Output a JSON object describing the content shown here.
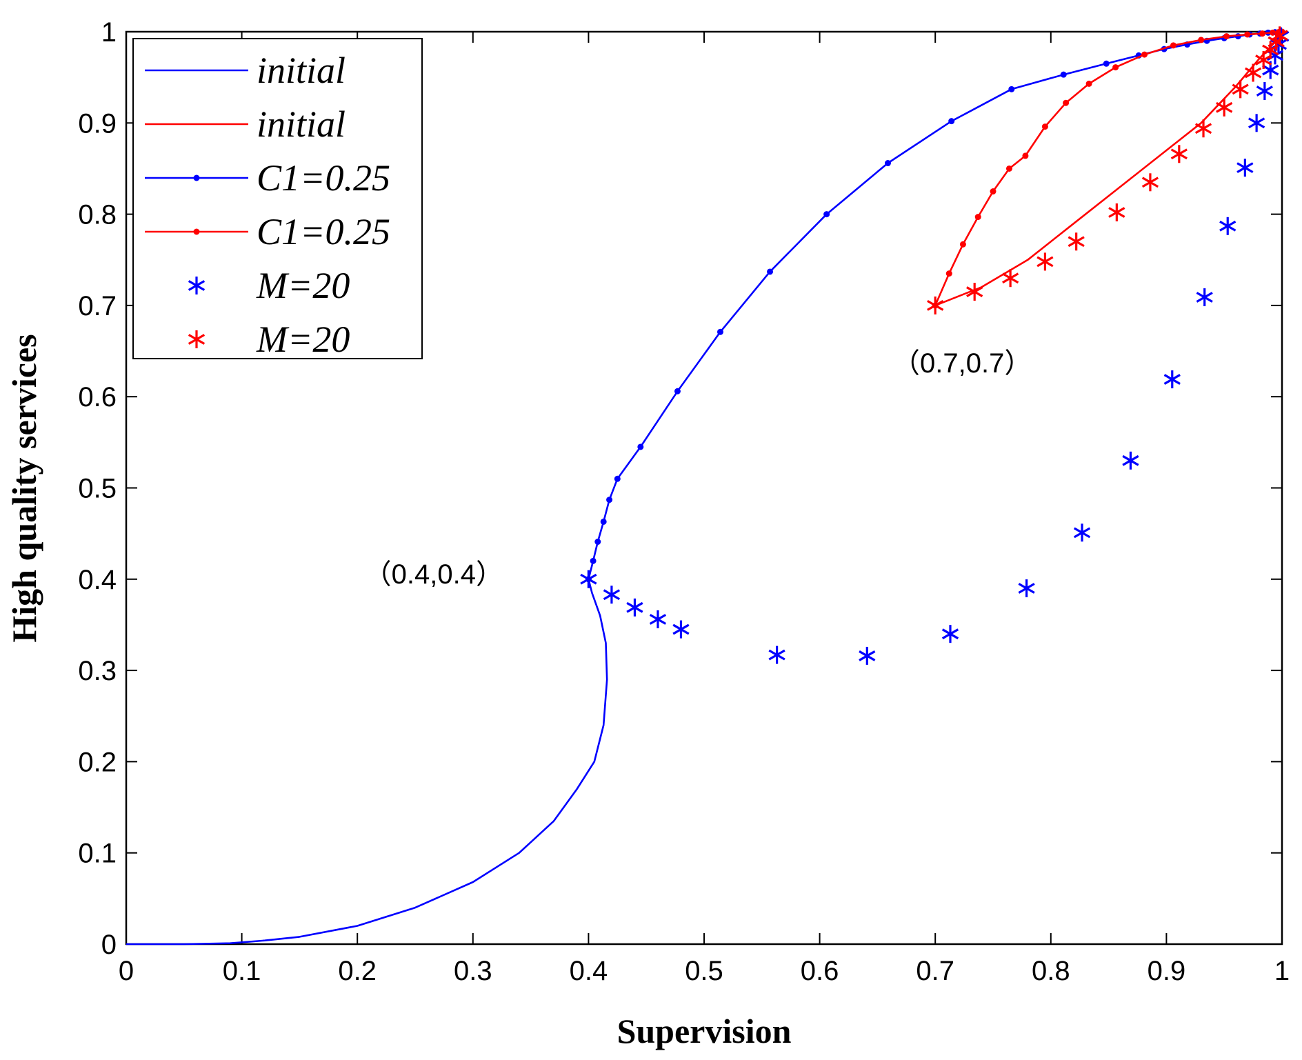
{
  "chart_data": {
    "type": "line",
    "title": "",
    "xlabel": "Supervision",
    "ylabel": "High quality services",
    "xlim": [
      0,
      1
    ],
    "ylim": [
      0,
      1
    ],
    "xticks": [
      "0",
      "0.1",
      "0.2",
      "0.3",
      "0.4",
      "0.5",
      "0.6",
      "0.7",
      "0.8",
      "0.9",
      "1"
    ],
    "yticks": [
      "0",
      "0.1",
      "0.2",
      "0.3",
      "0.4",
      "0.5",
      "0.6",
      "0.7",
      "0.8",
      "0.9",
      "1"
    ],
    "grid": false,
    "legend_position": "top-left",
    "series": [
      {
        "name": "initial",
        "color": "#0000ff",
        "marker": "none",
        "x": [
          0,
          0.05,
          0.09,
          0.12,
          0.15,
          0.2,
          0.25,
          0.3,
          0.34,
          0.37,
          0.39,
          0.405,
          0.413,
          0.416,
          0.415,
          0.41,
          0.403,
          0.4
        ],
        "y": [
          0,
          0,
          0.001,
          0.004,
          0.008,
          0.02,
          0.04,
          0.068,
          0.1,
          0.135,
          0.17,
          0.2,
          0.24,
          0.29,
          0.33,
          0.36,
          0.385,
          0.4
        ]
      },
      {
        "name": "initial",
        "color": "#ff0000",
        "marker": "none",
        "x": [
          0.7,
          0.74,
          0.78,
          0.82,
          0.86,
          0.9,
          0.93,
          0.96,
          0.98,
          0.995,
          1.0
        ],
        "y": [
          0.7,
          0.72,
          0.75,
          0.79,
          0.83,
          0.87,
          0.9,
          0.94,
          0.97,
          0.99,
          1.0
        ]
      },
      {
        "name": "C1=0.25",
        "color": "#0000ff",
        "marker": "dot",
        "x": [
          0.4,
          0.404,
          0.408,
          0.413,
          0.418,
          0.425,
          0.445,
          0.477,
          0.514,
          0.557,
          0.606,
          0.659,
          0.714,
          0.766,
          0.811,
          0.848,
          0.876,
          0.898,
          0.918,
          0.935,
          0.95,
          0.962,
          0.972,
          0.981,
          0.988,
          0.994,
          0.998,
          1.0
        ],
        "y": [
          0.4,
          0.42,
          0.441,
          0.463,
          0.487,
          0.51,
          0.545,
          0.606,
          0.671,
          0.737,
          0.8,
          0.856,
          0.902,
          0.937,
          0.953,
          0.965,
          0.974,
          0.981,
          0.986,
          0.99,
          0.993,
          0.995,
          0.997,
          0.998,
          0.999,
          0.9995,
          0.9998,
          1.0
        ]
      },
      {
        "name": "C1=0.25",
        "color": "#ff0000",
        "marker": "dot",
        "x": [
          0.7,
          0.712,
          0.724,
          0.737,
          0.75,
          0.764,
          0.778,
          0.795,
          0.813,
          0.833,
          0.856,
          0.881,
          0.906,
          0.93,
          0.952,
          0.97,
          0.983,
          0.992,
          0.997,
          1.0
        ],
        "y": [
          0.7,
          0.735,
          0.767,
          0.797,
          0.825,
          0.85,
          0.864,
          0.896,
          0.922,
          0.943,
          0.961,
          0.975,
          0.985,
          0.991,
          0.995,
          0.997,
          0.998,
          0.999,
          0.9995,
          1.0
        ]
      },
      {
        "name": "M=20",
        "color": "#0000ff",
        "marker": "asterisk",
        "x": [
          0.4,
          0.42,
          0.44,
          0.46,
          0.48,
          0.563,
          0.641,
          0.713,
          0.779,
          0.827,
          0.869,
          0.905,
          0.933,
          0.953,
          0.968,
          0.978,
          0.985,
          0.99,
          0.994,
          0.997,
          0.999
        ],
        "y": [
          0.4,
          0.383,
          0.369,
          0.356,
          0.345,
          0.317,
          0.316,
          0.34,
          0.39,
          0.451,
          0.53,
          0.619,
          0.709,
          0.787,
          0.851,
          0.9,
          0.935,
          0.958,
          0.974,
          0.986,
          0.995
        ]
      },
      {
        "name": "M=20",
        "color": "#ff0000",
        "marker": "asterisk",
        "x": [
          0.7,
          0.734,
          0.765,
          0.795,
          0.822,
          0.857,
          0.886,
          0.911,
          0.932,
          0.95,
          0.964,
          0.975,
          0.984,
          0.99,
          0.995,
          0.998
        ],
        "y": [
          0.7,
          0.715,
          0.73,
          0.748,
          0.77,
          0.802,
          0.835,
          0.866,
          0.894,
          0.917,
          0.937,
          0.955,
          0.969,
          0.98,
          0.989,
          0.996
        ]
      }
    ],
    "annotations": [
      {
        "text": "（0.4,0.4）",
        "x": 0.4,
        "y": 0.4
      },
      {
        "text": "（0.7,0.7）",
        "x": 0.7,
        "y": 0.7
      }
    ]
  }
}
